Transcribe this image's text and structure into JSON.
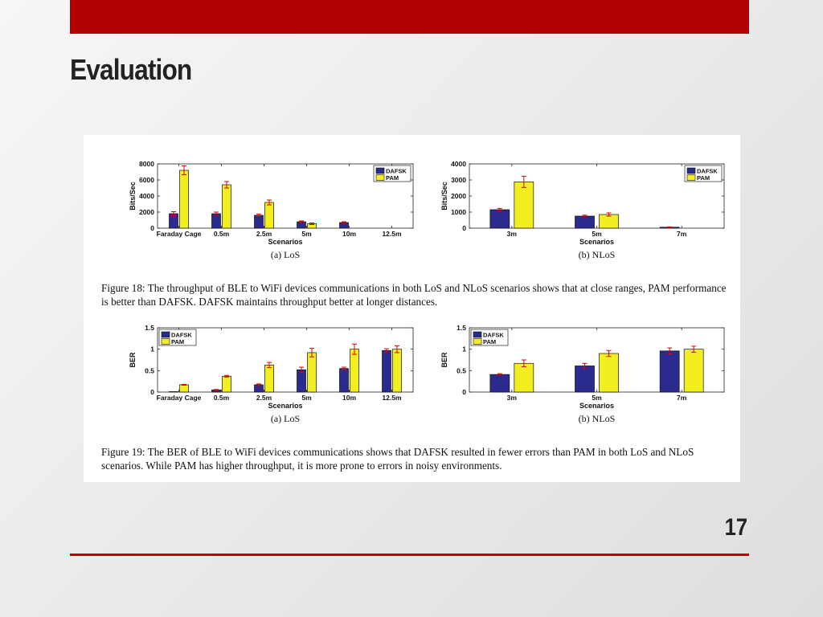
{
  "slide": {
    "title": "Evaluation",
    "page_number": "17"
  },
  "colors": {
    "accent": "#b00000",
    "dafsk": "#2b2b8f",
    "pam": "#f2ee20",
    "error_bar": "#e00000"
  },
  "captions": {
    "fig18": "Figure 18: The throughput of BLE to WiFi devices communications in both LoS and NLoS scenarios shows that at close ranges, PAM performance is better than DAFSK. DAFSK maintains throughput better at longer distances.",
    "fig19": "Figure 19: The BER of BLE to WiFi devices communications shows that DAFSK resulted in fewer errors than PAM in both LoS and NLoS scenarios. While PAM has higher throughput, it is more prone to errors in noisy environments."
  },
  "chart_data": [
    {
      "type": "bar",
      "subcaption": "(a) LoS",
      "categories": [
        "Faraday Cage",
        "0.5m",
        "2.5m",
        "5m",
        "10m",
        "12.5m"
      ],
      "series": [
        {
          "name": "DAFSK",
          "values": [
            1800,
            1800,
            1600,
            800,
            700,
            0
          ],
          "errors": [
            250,
            200,
            150,
            100,
            100,
            0
          ]
        },
        {
          "name": "PAM",
          "values": [
            7200,
            5400,
            3200,
            550,
            0,
            0
          ],
          "errors": [
            550,
            400,
            300,
            100,
            0,
            0
          ]
        }
      ],
      "xlabel": "Scenarios",
      "ylabel": "Bits/Sec",
      "ylim": [
        0,
        8000
      ],
      "yticks": [
        0,
        2000,
        4000,
        6000,
        8000
      ],
      "legend": "top-right",
      "grid": false
    },
    {
      "type": "bar",
      "subcaption": "(b) NLoS",
      "categories": [
        "3m",
        "5m",
        "7m"
      ],
      "series": [
        {
          "name": "DAFSK",
          "values": [
            1150,
            750,
            60
          ],
          "errors": [
            80,
            60,
            20
          ]
        },
        {
          "name": "PAM",
          "values": [
            2880,
            850,
            0
          ],
          "errors": [
            350,
            100,
            0
          ]
        }
      ],
      "xlabel": "Scenarios",
      "ylabel": "Bits/Sec",
      "ylim": [
        0,
        4000
      ],
      "yticks": [
        0,
        1000,
        2000,
        3000,
        4000
      ],
      "legend": "top-right",
      "grid": false
    },
    {
      "type": "bar",
      "subcaption": "(a) LoS",
      "categories": [
        "Faraday Cage",
        "0.5m",
        "2.5m",
        "5m",
        "10m",
        "12.5m"
      ],
      "series": [
        {
          "name": "DAFSK",
          "values": [
            0.01,
            0.05,
            0.17,
            0.52,
            0.55,
            0.97
          ],
          "errors": [
            0,
            0.01,
            0.02,
            0.06,
            0.03,
            0.04
          ]
        },
        {
          "name": "PAM",
          "values": [
            0.17,
            0.37,
            0.63,
            0.92,
            1.0,
            1.0
          ],
          "errors": [
            0.01,
            0.02,
            0.06,
            0.1,
            0.12,
            0.08
          ]
        }
      ],
      "xlabel": "Scenarios",
      "ylabel": "BER",
      "ylim": [
        0,
        1.5
      ],
      "yticks": [
        0,
        0.5,
        1,
        1.5
      ],
      "legend": "top-left",
      "grid": false
    },
    {
      "type": "bar",
      "subcaption": "(b) NLoS",
      "categories": [
        "3m",
        "5m",
        "7m"
      ],
      "series": [
        {
          "name": "DAFSK",
          "values": [
            0.41,
            0.61,
            0.96
          ],
          "errors": [
            0.02,
            0.06,
            0.07
          ]
        },
        {
          "name": "PAM",
          "values": [
            0.67,
            0.9,
            1.0
          ],
          "errors": [
            0.08,
            0.07,
            0.07
          ]
        }
      ],
      "xlabel": "Scenarios",
      "ylabel": "BER",
      "ylim": [
        0,
        1.5
      ],
      "yticks": [
        0,
        0.5,
        1,
        1.5
      ],
      "legend": "top-left",
      "grid": false
    }
  ]
}
